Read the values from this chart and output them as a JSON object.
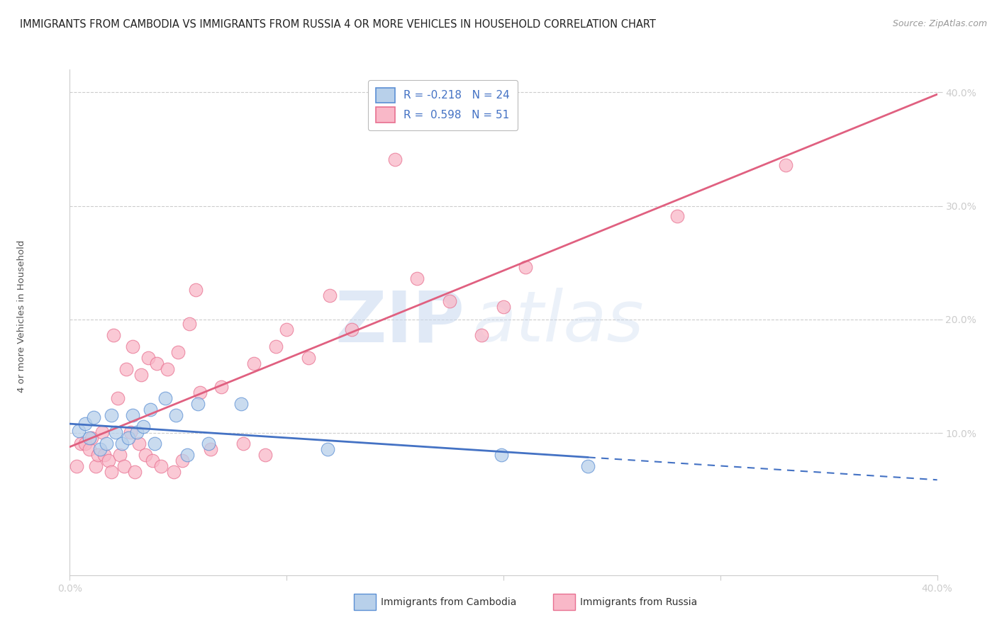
{
  "title": "IMMIGRANTS FROM CAMBODIA VS IMMIGRANTS FROM RUSSIA 4 OR MORE VEHICLES IN HOUSEHOLD CORRELATION CHART",
  "source": "Source: ZipAtlas.com",
  "ylabel": "4 or more Vehicles in Household",
  "xmin": 0.0,
  "xmax": 0.4,
  "ymin": -0.025,
  "ymax": 0.42,
  "legend_blue_R": -0.218,
  "legend_blue_N": 24,
  "legend_pink_R": 0.598,
  "legend_pink_N": 51,
  "watermark_zip": "ZIP",
  "watermark_atlas": "atlas",
  "blue_fill": "#b8d0ea",
  "pink_fill": "#f9b8c8",
  "blue_edge": "#5b8fd4",
  "pink_edge": "#e87090",
  "blue_line": "#4472c4",
  "pink_line": "#e06080",
  "title_fontsize": 10.5,
  "source_fontsize": 9,
  "tick_color": "#5b8fd4",
  "grid_color": "#cccccc",
  "bg_color": "#ffffff",
  "blue_scatter": [
    [
      0.004,
      0.102
    ],
    [
      0.007,
      0.108
    ],
    [
      0.009,
      0.096
    ],
    [
      0.011,
      0.114
    ],
    [
      0.014,
      0.086
    ],
    [
      0.017,
      0.091
    ],
    [
      0.019,
      0.116
    ],
    [
      0.021,
      0.101
    ],
    [
      0.024,
      0.091
    ],
    [
      0.027,
      0.096
    ],
    [
      0.029,
      0.116
    ],
    [
      0.031,
      0.101
    ],
    [
      0.034,
      0.106
    ],
    [
      0.037,
      0.121
    ],
    [
      0.039,
      0.091
    ],
    [
      0.044,
      0.131
    ],
    [
      0.049,
      0.116
    ],
    [
      0.054,
      0.081
    ],
    [
      0.059,
      0.126
    ],
    [
      0.064,
      0.091
    ],
    [
      0.079,
      0.126
    ],
    [
      0.119,
      0.086
    ],
    [
      0.199,
      0.081
    ],
    [
      0.239,
      0.071
    ]
  ],
  "pink_scatter": [
    [
      0.003,
      0.071
    ],
    [
      0.005,
      0.091
    ],
    [
      0.007,
      0.091
    ],
    [
      0.009,
      0.086
    ],
    [
      0.01,
      0.096
    ],
    [
      0.012,
      0.071
    ],
    [
      0.013,
      0.081
    ],
    [
      0.015,
      0.101
    ],
    [
      0.016,
      0.081
    ],
    [
      0.018,
      0.076
    ],
    [
      0.019,
      0.066
    ],
    [
      0.02,
      0.186
    ],
    [
      0.022,
      0.131
    ],
    [
      0.023,
      0.081
    ],
    [
      0.025,
      0.071
    ],
    [
      0.026,
      0.156
    ],
    [
      0.028,
      0.101
    ],
    [
      0.029,
      0.176
    ],
    [
      0.03,
      0.066
    ],
    [
      0.032,
      0.091
    ],
    [
      0.033,
      0.151
    ],
    [
      0.035,
      0.081
    ],
    [
      0.036,
      0.166
    ],
    [
      0.038,
      0.076
    ],
    [
      0.04,
      0.161
    ],
    [
      0.042,
      0.071
    ],
    [
      0.045,
      0.156
    ],
    [
      0.048,
      0.066
    ],
    [
      0.05,
      0.171
    ],
    [
      0.052,
      0.076
    ],
    [
      0.055,
      0.196
    ],
    [
      0.058,
      0.226
    ],
    [
      0.06,
      0.136
    ],
    [
      0.065,
      0.086
    ],
    [
      0.07,
      0.141
    ],
    [
      0.08,
      0.091
    ],
    [
      0.085,
      0.161
    ],
    [
      0.09,
      0.081
    ],
    [
      0.095,
      0.176
    ],
    [
      0.1,
      0.191
    ],
    [
      0.11,
      0.166
    ],
    [
      0.12,
      0.221
    ],
    [
      0.13,
      0.191
    ],
    [
      0.15,
      0.341
    ],
    [
      0.16,
      0.236
    ],
    [
      0.175,
      0.216
    ],
    [
      0.19,
      0.186
    ],
    [
      0.2,
      0.211
    ],
    [
      0.21,
      0.246
    ],
    [
      0.28,
      0.291
    ],
    [
      0.33,
      0.336
    ]
  ]
}
